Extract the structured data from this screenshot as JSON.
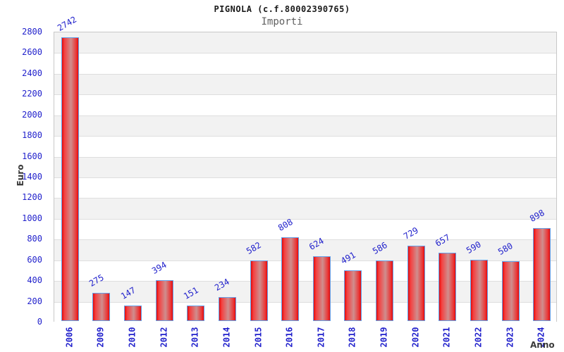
{
  "chart_data": {
    "type": "bar",
    "title": "PIGNOLA (c.f.80002390765)",
    "subtitle": "Importi",
    "xlabel": "Anno",
    "ylabel": "Euro",
    "categories": [
      "2006",
      "2009",
      "2010",
      "2012",
      "2013",
      "2014",
      "2015",
      "2016",
      "2017",
      "2018",
      "2019",
      "2020",
      "2021",
      "2022",
      "2023",
      "2024"
    ],
    "values": [
      2742,
      275,
      147,
      394,
      151,
      234,
      582,
      808,
      624,
      491,
      586,
      729,
      657,
      590,
      580,
      898
    ],
    "ylim": [
      0,
      2800
    ],
    "ytick_step": 200,
    "yticks": [
      0,
      200,
      400,
      600,
      800,
      1000,
      1200,
      1400,
      1600,
      1800,
      2000,
      2200,
      2400,
      2600,
      2800
    ],
    "grid": true,
    "legend_position": "none",
    "colors": {
      "bar_fill": "#e30b0b",
      "bar_fill_mid": "#cf8e8e",
      "bar_border": "#64a0e8",
      "tick_label": "#2222cc",
      "value_label": "#2222cc",
      "band_alt": "#f2f2f2",
      "band_base": "#ffffff",
      "grid_line": "#dedede",
      "title": "#1a1a1a",
      "subtitle": "#606060",
      "axis_label": "#3a3a3a"
    }
  }
}
